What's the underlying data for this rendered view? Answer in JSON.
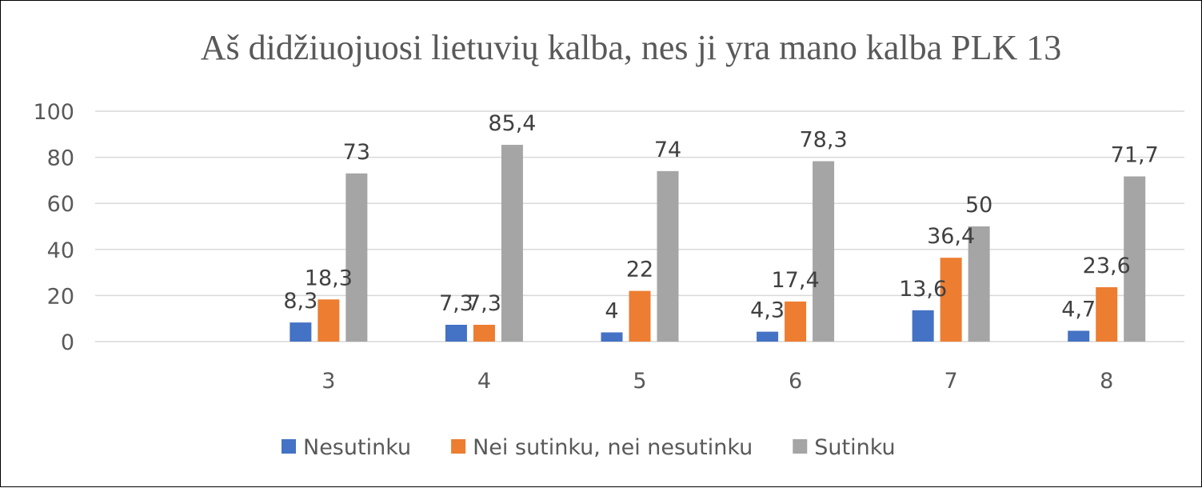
{
  "chart_data": {
    "type": "bar",
    "title": "Aš didžiuojuosi lietuvių kalba, nes ji yra mano kalba PLK 13",
    "xlabel": "",
    "ylabel": "",
    "categories": [
      "",
      "3",
      "4",
      "5",
      "6",
      "7",
      "8"
    ],
    "series": [
      {
        "name": "Nesutinku",
        "color": "#4472C4",
        "values": [
          null,
          8.3,
          7.3,
          4,
          4.3,
          13.6,
          4.7
        ],
        "labels": [
          "",
          "8,3",
          "7,3",
          "4",
          "4,3",
          "13,6",
          "4,7"
        ]
      },
      {
        "name": "Nei sutinku, nei nesutinku",
        "color": "#ED7D31",
        "values": [
          null,
          18.3,
          7.3,
          22,
          17.4,
          36.4,
          23.6
        ],
        "labels": [
          "",
          "18,3",
          "7,3",
          "22",
          "17,4",
          "36,4",
          "23,6"
        ]
      },
      {
        "name": "Sutinku",
        "color": "#A5A5A5",
        "values": [
          null,
          73,
          85.4,
          74,
          78.3,
          50,
          71.7
        ],
        "labels": [
          "",
          "73",
          "85,4",
          "74",
          "78,3",
          "50",
          "71,7"
        ]
      }
    ],
    "ylim": [
      0,
      100
    ],
    "yticks": [
      0,
      20,
      40,
      60,
      80,
      100
    ],
    "grid": true,
    "legend": "bottom"
  }
}
